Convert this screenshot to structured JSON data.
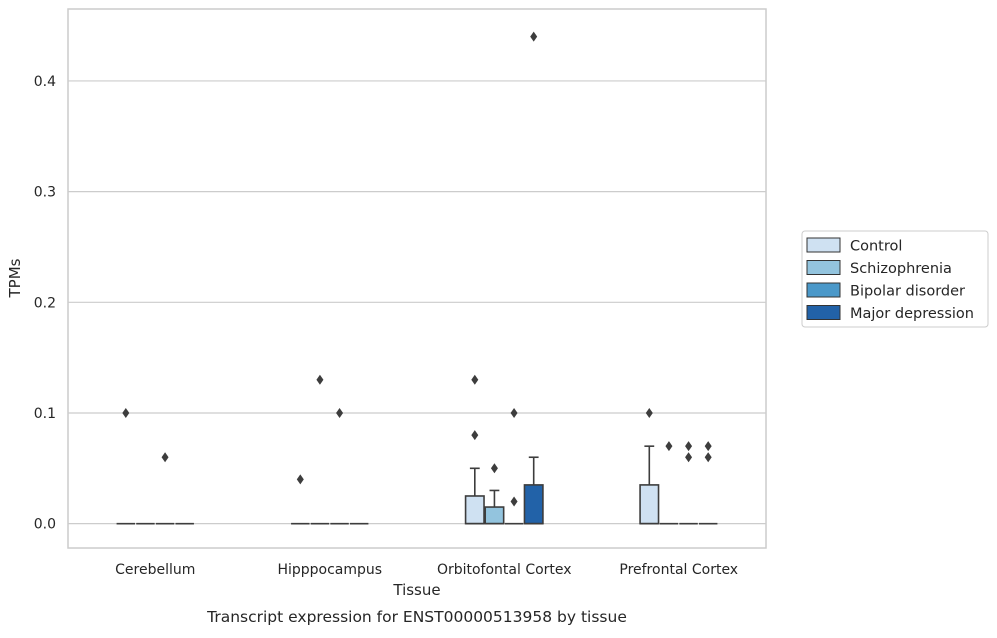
{
  "chart_data": {
    "type": "box",
    "xlabel": "Tissue",
    "ylabel": "TPMs",
    "caption": "Transcript expression for ENST00000513958 by tissue",
    "ylim": [
      -0.022,
      0.465
    ],
    "yticks": [
      0.0,
      0.1,
      0.2,
      0.3,
      0.4
    ],
    "ytick_labels": [
      "0.0",
      "0.1",
      "0.2",
      "0.3",
      "0.4"
    ],
    "grid": "horizontal",
    "legend_position": "right",
    "categories": [
      "Cerebellum",
      "Hipppocampus",
      "Orbitofontal Cortex",
      "Prefrontal Cortex"
    ],
    "series": [
      {
        "name": "Control",
        "color": "#cfe1f2",
        "boxes": [
          {
            "q1": 0,
            "median": 0,
            "q3": 0,
            "whisker_low": 0,
            "whisker_high": 0,
            "outliers": [
              0.1
            ]
          },
          {
            "q1": 0,
            "median": 0,
            "q3": 0,
            "whisker_low": 0,
            "whisker_high": 0,
            "outliers": [
              0.04
            ]
          },
          {
            "q1": 0,
            "median": 0,
            "q3": 0.025,
            "whisker_low": 0,
            "whisker_high": 0.05,
            "outliers": [
              0.08,
              0.13
            ]
          },
          {
            "q1": 0,
            "median": 0,
            "q3": 0.035,
            "whisker_low": 0,
            "whisker_high": 0.07,
            "outliers": [
              0.1
            ]
          }
        ]
      },
      {
        "name": "Schizophrenia",
        "color": "#93c4de",
        "boxes": [
          {
            "q1": 0,
            "median": 0,
            "q3": 0,
            "whisker_low": 0,
            "whisker_high": 0,
            "outliers": []
          },
          {
            "q1": 0,
            "median": 0,
            "q3": 0,
            "whisker_low": 0,
            "whisker_high": 0,
            "outliers": [
              0.13
            ]
          },
          {
            "q1": 0,
            "median": 0,
            "q3": 0.015,
            "whisker_low": 0,
            "whisker_high": 0.03,
            "outliers": [
              0.05
            ]
          },
          {
            "q1": 0,
            "median": 0,
            "q3": 0,
            "whisker_low": 0,
            "whisker_high": 0,
            "outliers": [
              0.07
            ]
          }
        ]
      },
      {
        "name": "Bipolar disorder",
        "color": "#4a98c9",
        "boxes": [
          {
            "q1": 0,
            "median": 0,
            "q3": 0,
            "whisker_low": 0,
            "whisker_high": 0,
            "outliers": [
              0.06
            ]
          },
          {
            "q1": 0,
            "median": 0,
            "q3": 0,
            "whisker_low": 0,
            "whisker_high": 0,
            "outliers": [
              0.1
            ]
          },
          {
            "q1": 0,
            "median": 0,
            "q3": 0,
            "whisker_low": 0,
            "whisker_high": 0,
            "outliers": [
              0.02,
              0.1
            ]
          },
          {
            "q1": 0,
            "median": 0,
            "q3": 0,
            "whisker_low": 0,
            "whisker_high": 0,
            "outliers": [
              0.06,
              0.07
            ]
          }
        ]
      },
      {
        "name": "Major depression",
        "color": "#2262a8",
        "boxes": [
          {
            "q1": 0,
            "median": 0,
            "q3": 0,
            "whisker_low": 0,
            "whisker_high": 0,
            "outliers": []
          },
          {
            "q1": 0,
            "median": 0,
            "q3": 0,
            "whisker_low": 0,
            "whisker_high": 0,
            "outliers": []
          },
          {
            "q1": 0,
            "median": 0,
            "q3": 0.035,
            "whisker_low": 0,
            "whisker_high": 0.06,
            "outliers": [
              0.44
            ]
          },
          {
            "q1": 0,
            "median": 0,
            "q3": 0,
            "whisker_low": 0,
            "whisker_high": 0,
            "outliers": [
              0.06,
              0.07
            ]
          }
        ]
      }
    ],
    "colors": {
      "grid": "#cccccc",
      "frame": "#cccccc",
      "line": "#3d3d3d",
      "legend_border": "#cccccc"
    }
  }
}
